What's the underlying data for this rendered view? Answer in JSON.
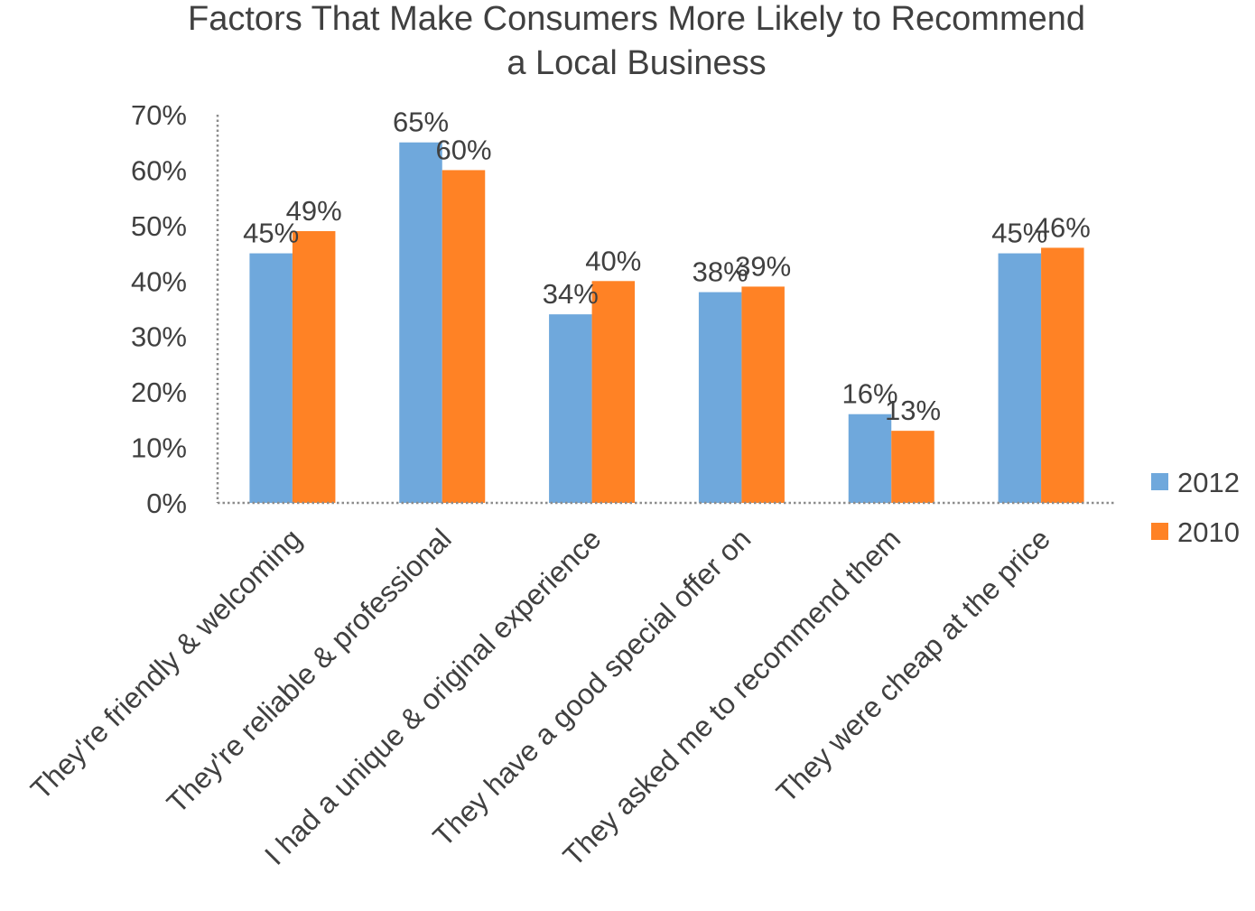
{
  "chart_data": {
    "type": "bar",
    "title_lines": [
      "Factors That Make Consumers More Likely to Recommend",
      "a Local Business"
    ],
    "categories": [
      "They're friendly & welcoming",
      "They're reliable & professional",
      "I had a unique & original experience",
      "They have a good special offer on",
      "They asked me to recommend them",
      "They were cheap at the price"
    ],
    "series": [
      {
        "name": "2012",
        "color": "#6FA8DC",
        "values": [
          45,
          65,
          34,
          38,
          16,
          45
        ],
        "labels": [
          "45%",
          "65%",
          "34%",
          "38%",
          "16%",
          "45%"
        ]
      },
      {
        "name": "2010",
        "color": "#FF8225",
        "values": [
          49,
          60,
          40,
          39,
          13,
          46
        ],
        "labels": [
          "49%",
          "60%",
          "40%",
          "39%",
          "13%",
          "46%"
        ]
      }
    ],
    "ylim": [
      0,
      70
    ],
    "yticks": [
      0,
      10,
      20,
      30,
      40,
      50,
      60,
      70
    ],
    "ytick_labels": [
      "0%",
      "10%",
      "20%",
      "30%",
      "40%",
      "50%",
      "60%",
      "70%"
    ],
    "xlabel": "",
    "ylabel": "",
    "legend_position": "right",
    "grid": false
  }
}
